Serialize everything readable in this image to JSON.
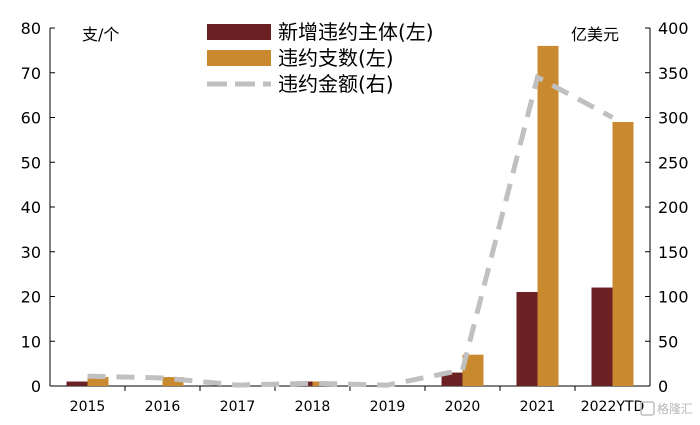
{
  "chart_data": {
    "type": "bar",
    "categories": [
      "2015",
      "2016",
      "2017",
      "2018",
      "2019",
      "2020",
      "2021",
      "2022YTD"
    ],
    "series": [
      {
        "name": "新增违约主体(左)",
        "type": "bar",
        "axis": "left",
        "color": "#6b2024",
        "values": [
          1,
          0,
          0,
          1,
          0,
          3,
          21,
          22
        ]
      },
      {
        "name": "违约支数(左)",
        "type": "bar",
        "axis": "left",
        "color": "#c8892f",
        "values": [
          2,
          2,
          0,
          1,
          0,
          7,
          76,
          59
        ]
      },
      {
        "name": "违约金额(右)",
        "type": "line",
        "style": "dashed",
        "axis": "right",
        "color": "#c0c0c0",
        "values": [
          11,
          9,
          1,
          3,
          1,
          18,
          345,
          300
        ]
      }
    ],
    "y_left": {
      "unit": "支/个",
      "lim": [
        0,
        80
      ],
      "ticks": [
        "0",
        "10",
        "20",
        "30",
        "40",
        "50",
        "60",
        "70",
        "80"
      ]
    },
    "y_right": {
      "unit": "亿美元",
      "lim": [
        0,
        400
      ],
      "ticks": [
        "0",
        "50",
        "100",
        "150",
        "200",
        "250",
        "300",
        "350",
        "400"
      ]
    },
    "legend": "top-center",
    "grid": false
  },
  "watermark": "格隆汇"
}
